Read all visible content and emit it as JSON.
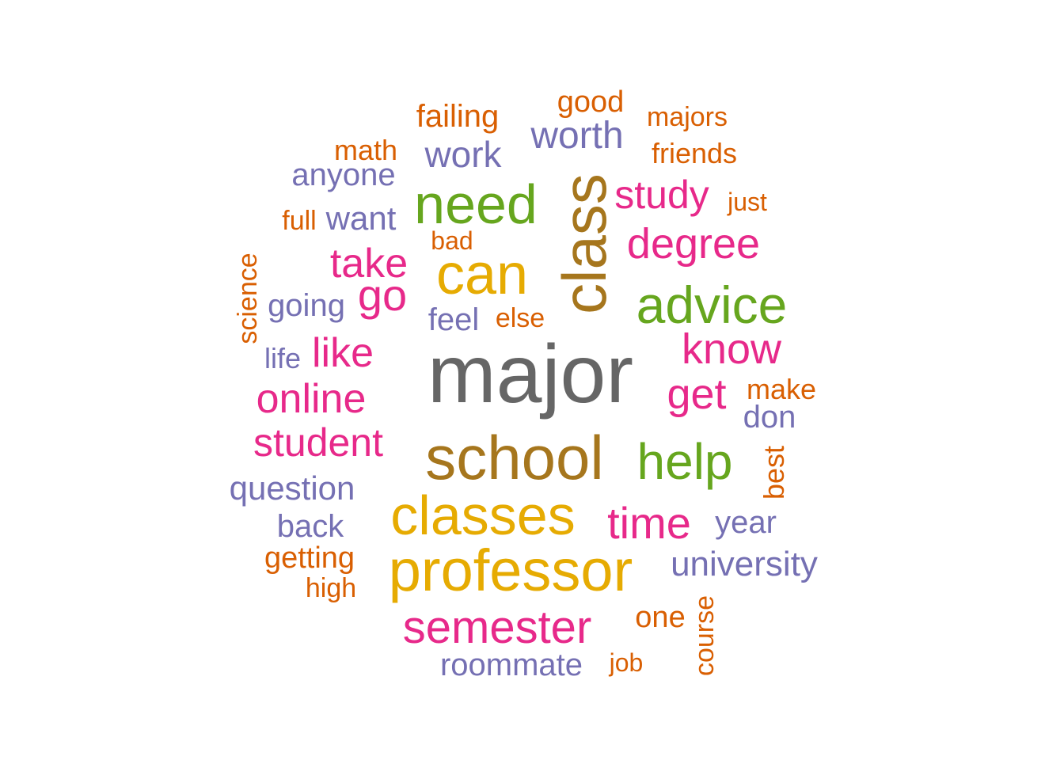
{
  "colors": {
    "gray": "#666666",
    "gold": "#e6ab02",
    "brown": "#a6761d",
    "green": "#66a61e",
    "magenta": "#e7298a",
    "purple": "#7570b3",
    "orange": "#d95f02"
  },
  "words": [
    {
      "text": "major",
      "color": "gray"
    },
    {
      "text": "school",
      "color": "brown"
    },
    {
      "text": "class",
      "color": "brown"
    },
    {
      "text": "professor",
      "color": "gold"
    },
    {
      "text": "classes",
      "color": "gold"
    },
    {
      "text": "can",
      "color": "gold"
    },
    {
      "text": "need",
      "color": "green"
    },
    {
      "text": "advice",
      "color": "green"
    },
    {
      "text": "help",
      "color": "green"
    },
    {
      "text": "semester",
      "color": "magenta"
    },
    {
      "text": "time",
      "color": "magenta"
    },
    {
      "text": "degree",
      "color": "magenta"
    },
    {
      "text": "know",
      "color": "magenta"
    },
    {
      "text": "get",
      "color": "magenta"
    },
    {
      "text": "online",
      "color": "magenta"
    },
    {
      "text": "student",
      "color": "magenta"
    },
    {
      "text": "take",
      "color": "magenta"
    },
    {
      "text": "go",
      "color": "magenta"
    },
    {
      "text": "like",
      "color": "magenta"
    },
    {
      "text": "study",
      "color": "magenta"
    },
    {
      "text": "worth",
      "color": "purple"
    },
    {
      "text": "work",
      "color": "purple"
    },
    {
      "text": "anyone",
      "color": "purple"
    },
    {
      "text": "want",
      "color": "purple"
    },
    {
      "text": "going",
      "color": "purple"
    },
    {
      "text": "feel",
      "color": "purple"
    },
    {
      "text": "life",
      "color": "purple"
    },
    {
      "text": "question",
      "color": "purple"
    },
    {
      "text": "back",
      "color": "purple"
    },
    {
      "text": "university",
      "color": "purple"
    },
    {
      "text": "year",
      "color": "purple"
    },
    {
      "text": "don",
      "color": "purple"
    },
    {
      "text": "roommate",
      "color": "purple"
    },
    {
      "text": "failing",
      "color": "orange"
    },
    {
      "text": "good",
      "color": "orange"
    },
    {
      "text": "majors",
      "color": "orange"
    },
    {
      "text": "friends",
      "color": "orange"
    },
    {
      "text": "math",
      "color": "orange"
    },
    {
      "text": "just",
      "color": "orange"
    },
    {
      "text": "full",
      "color": "orange"
    },
    {
      "text": "bad",
      "color": "orange"
    },
    {
      "text": "science",
      "color": "orange"
    },
    {
      "text": "else",
      "color": "orange"
    },
    {
      "text": "make",
      "color": "orange"
    },
    {
      "text": "best",
      "color": "orange"
    },
    {
      "text": "getting",
      "color": "orange"
    },
    {
      "text": "high",
      "color": "orange"
    },
    {
      "text": "one",
      "color": "orange"
    },
    {
      "text": "job",
      "color": "orange"
    },
    {
      "text": "course",
      "color": "orange"
    }
  ]
}
